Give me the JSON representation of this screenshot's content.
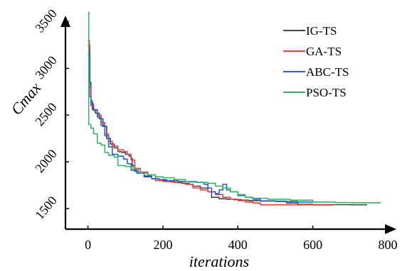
{
  "chart_data": {
    "type": "line",
    "xlabel": "iterations",
    "ylabel": "Cmax",
    "xlim": [
      -60,
      800
    ],
    "ylim": [
      1280,
      3580
    ],
    "x_ticks": [
      0,
      200,
      400,
      600,
      800
    ],
    "y_ticks": [
      1500,
      2000,
      2500,
      3000,
      3500
    ],
    "legend_position": "top-right",
    "grid": false,
    "series": [
      {
        "name": "IG-TS",
        "color": "#444444",
        "points": [
          [
            0,
            3250
          ],
          [
            5,
            2850
          ],
          [
            8,
            2650
          ],
          [
            12,
            2560
          ],
          [
            20,
            2520
          ],
          [
            30,
            2460
          ],
          [
            40,
            2380
          ],
          [
            50,
            2250
          ],
          [
            60,
            2190
          ],
          [
            70,
            2150
          ],
          [
            80,
            2110
          ],
          [
            90,
            2100
          ],
          [
            100,
            2080
          ],
          [
            110,
            2060
          ],
          [
            115,
            2040
          ],
          [
            118,
            1960
          ],
          [
            125,
            1900
          ],
          [
            135,
            1880
          ],
          [
            150,
            1840
          ],
          [
            170,
            1820
          ],
          [
            190,
            1800
          ],
          [
            210,
            1790
          ],
          [
            230,
            1780
          ],
          [
            250,
            1770
          ],
          [
            270,
            1760
          ],
          [
            280,
            1740
          ],
          [
            300,
            1720
          ],
          [
            320,
            1680
          ],
          [
            330,
            1620
          ],
          [
            350,
            1605
          ],
          [
            370,
            1600
          ],
          [
            390,
            1595
          ],
          [
            410,
            1590
          ],
          [
            430,
            1585
          ],
          [
            460,
            1582
          ],
          [
            500,
            1580
          ],
          [
            530,
            1560
          ],
          [
            560,
            1545
          ],
          [
            600,
            1542
          ],
          [
            700,
            1540
          ],
          [
            745,
            1540
          ]
        ]
      },
      {
        "name": "GA-TS",
        "color": "#e84040",
        "points": [
          [
            0,
            3300
          ],
          [
            4,
            2800
          ],
          [
            8,
            2600
          ],
          [
            15,
            2560
          ],
          [
            25,
            2500
          ],
          [
            35,
            2420
          ],
          [
            45,
            2300
          ],
          [
            55,
            2220
          ],
          [
            65,
            2170
          ],
          [
            80,
            2130
          ],
          [
            95,
            2110
          ],
          [
            105,
            2080
          ],
          [
            115,
            2020
          ],
          [
            125,
            1930
          ],
          [
            140,
            1890
          ],
          [
            160,
            1860
          ],
          [
            180,
            1800
          ],
          [
            200,
            1790
          ],
          [
            220,
            1785
          ],
          [
            240,
            1775
          ],
          [
            260,
            1760
          ],
          [
            280,
            1720
          ],
          [
            300,
            1700
          ],
          [
            320,
            1680
          ],
          [
            340,
            1650
          ],
          [
            360,
            1620
          ],
          [
            380,
            1600
          ],
          [
            400,
            1585
          ],
          [
            420,
            1570
          ],
          [
            440,
            1560
          ],
          [
            460,
            1540
          ],
          [
            500,
            1540
          ],
          [
            560,
            1540
          ],
          [
            600,
            1538
          ],
          [
            655,
            1538
          ]
        ]
      },
      {
        "name": "ABC-TS",
        "color": "#2b5fd9",
        "points": [
          [
            0,
            3150
          ],
          [
            4,
            2700
          ],
          [
            8,
            2620
          ],
          [
            15,
            2550
          ],
          [
            25,
            2480
          ],
          [
            35,
            2390
          ],
          [
            45,
            2280
          ],
          [
            55,
            2160
          ],
          [
            65,
            2080
          ],
          [
            80,
            2060
          ],
          [
            95,
            2030
          ],
          [
            105,
            1980
          ],
          [
            115,
            1910
          ],
          [
            130,
            1880
          ],
          [
            150,
            1850
          ],
          [
            170,
            1820
          ],
          [
            190,
            1810
          ],
          [
            210,
            1800
          ],
          [
            240,
            1790
          ],
          [
            270,
            1785
          ],
          [
            290,
            1780
          ],
          [
            310,
            1760
          ],
          [
            320,
            1720
          ],
          [
            330,
            1680
          ],
          [
            340,
            1660
          ],
          [
            350,
            1700
          ],
          [
            360,
            1760
          ],
          [
            370,
            1700
          ],
          [
            380,
            1680
          ],
          [
            400,
            1640
          ],
          [
            420,
            1620
          ],
          [
            440,
            1600
          ],
          [
            460,
            1580
          ],
          [
            500,
            1575
          ],
          [
            560,
            1570
          ],
          [
            640,
            1570
          ]
        ]
      },
      {
        "name": "PSO-TS",
        "color": "#33b563",
        "points": [
          [
            0,
            3600
          ],
          [
            2,
            2400
          ],
          [
            8,
            2360
          ],
          [
            15,
            2300
          ],
          [
            25,
            2200
          ],
          [
            35,
            2180
          ],
          [
            45,
            2100
          ],
          [
            55,
            2070
          ],
          [
            70,
            2050
          ],
          [
            80,
            1960
          ],
          [
            100,
            1950
          ],
          [
            120,
            1920
          ],
          [
            140,
            1880
          ],
          [
            160,
            1860
          ],
          [
            180,
            1840
          ],
          [
            200,
            1830
          ],
          [
            230,
            1810
          ],
          [
            260,
            1790
          ],
          [
            290,
            1780
          ],
          [
            320,
            1770
          ],
          [
            340,
            1740
          ],
          [
            360,
            1720
          ],
          [
            380,
            1680
          ],
          [
            400,
            1650
          ],
          [
            420,
            1620
          ],
          [
            440,
            1610
          ],
          [
            480,
            1600
          ],
          [
            540,
            1590
          ],
          [
            600,
            1570
          ],
          [
            660,
            1565
          ],
          [
            700,
            1562
          ],
          [
            780,
            1560
          ]
        ]
      }
    ]
  }
}
